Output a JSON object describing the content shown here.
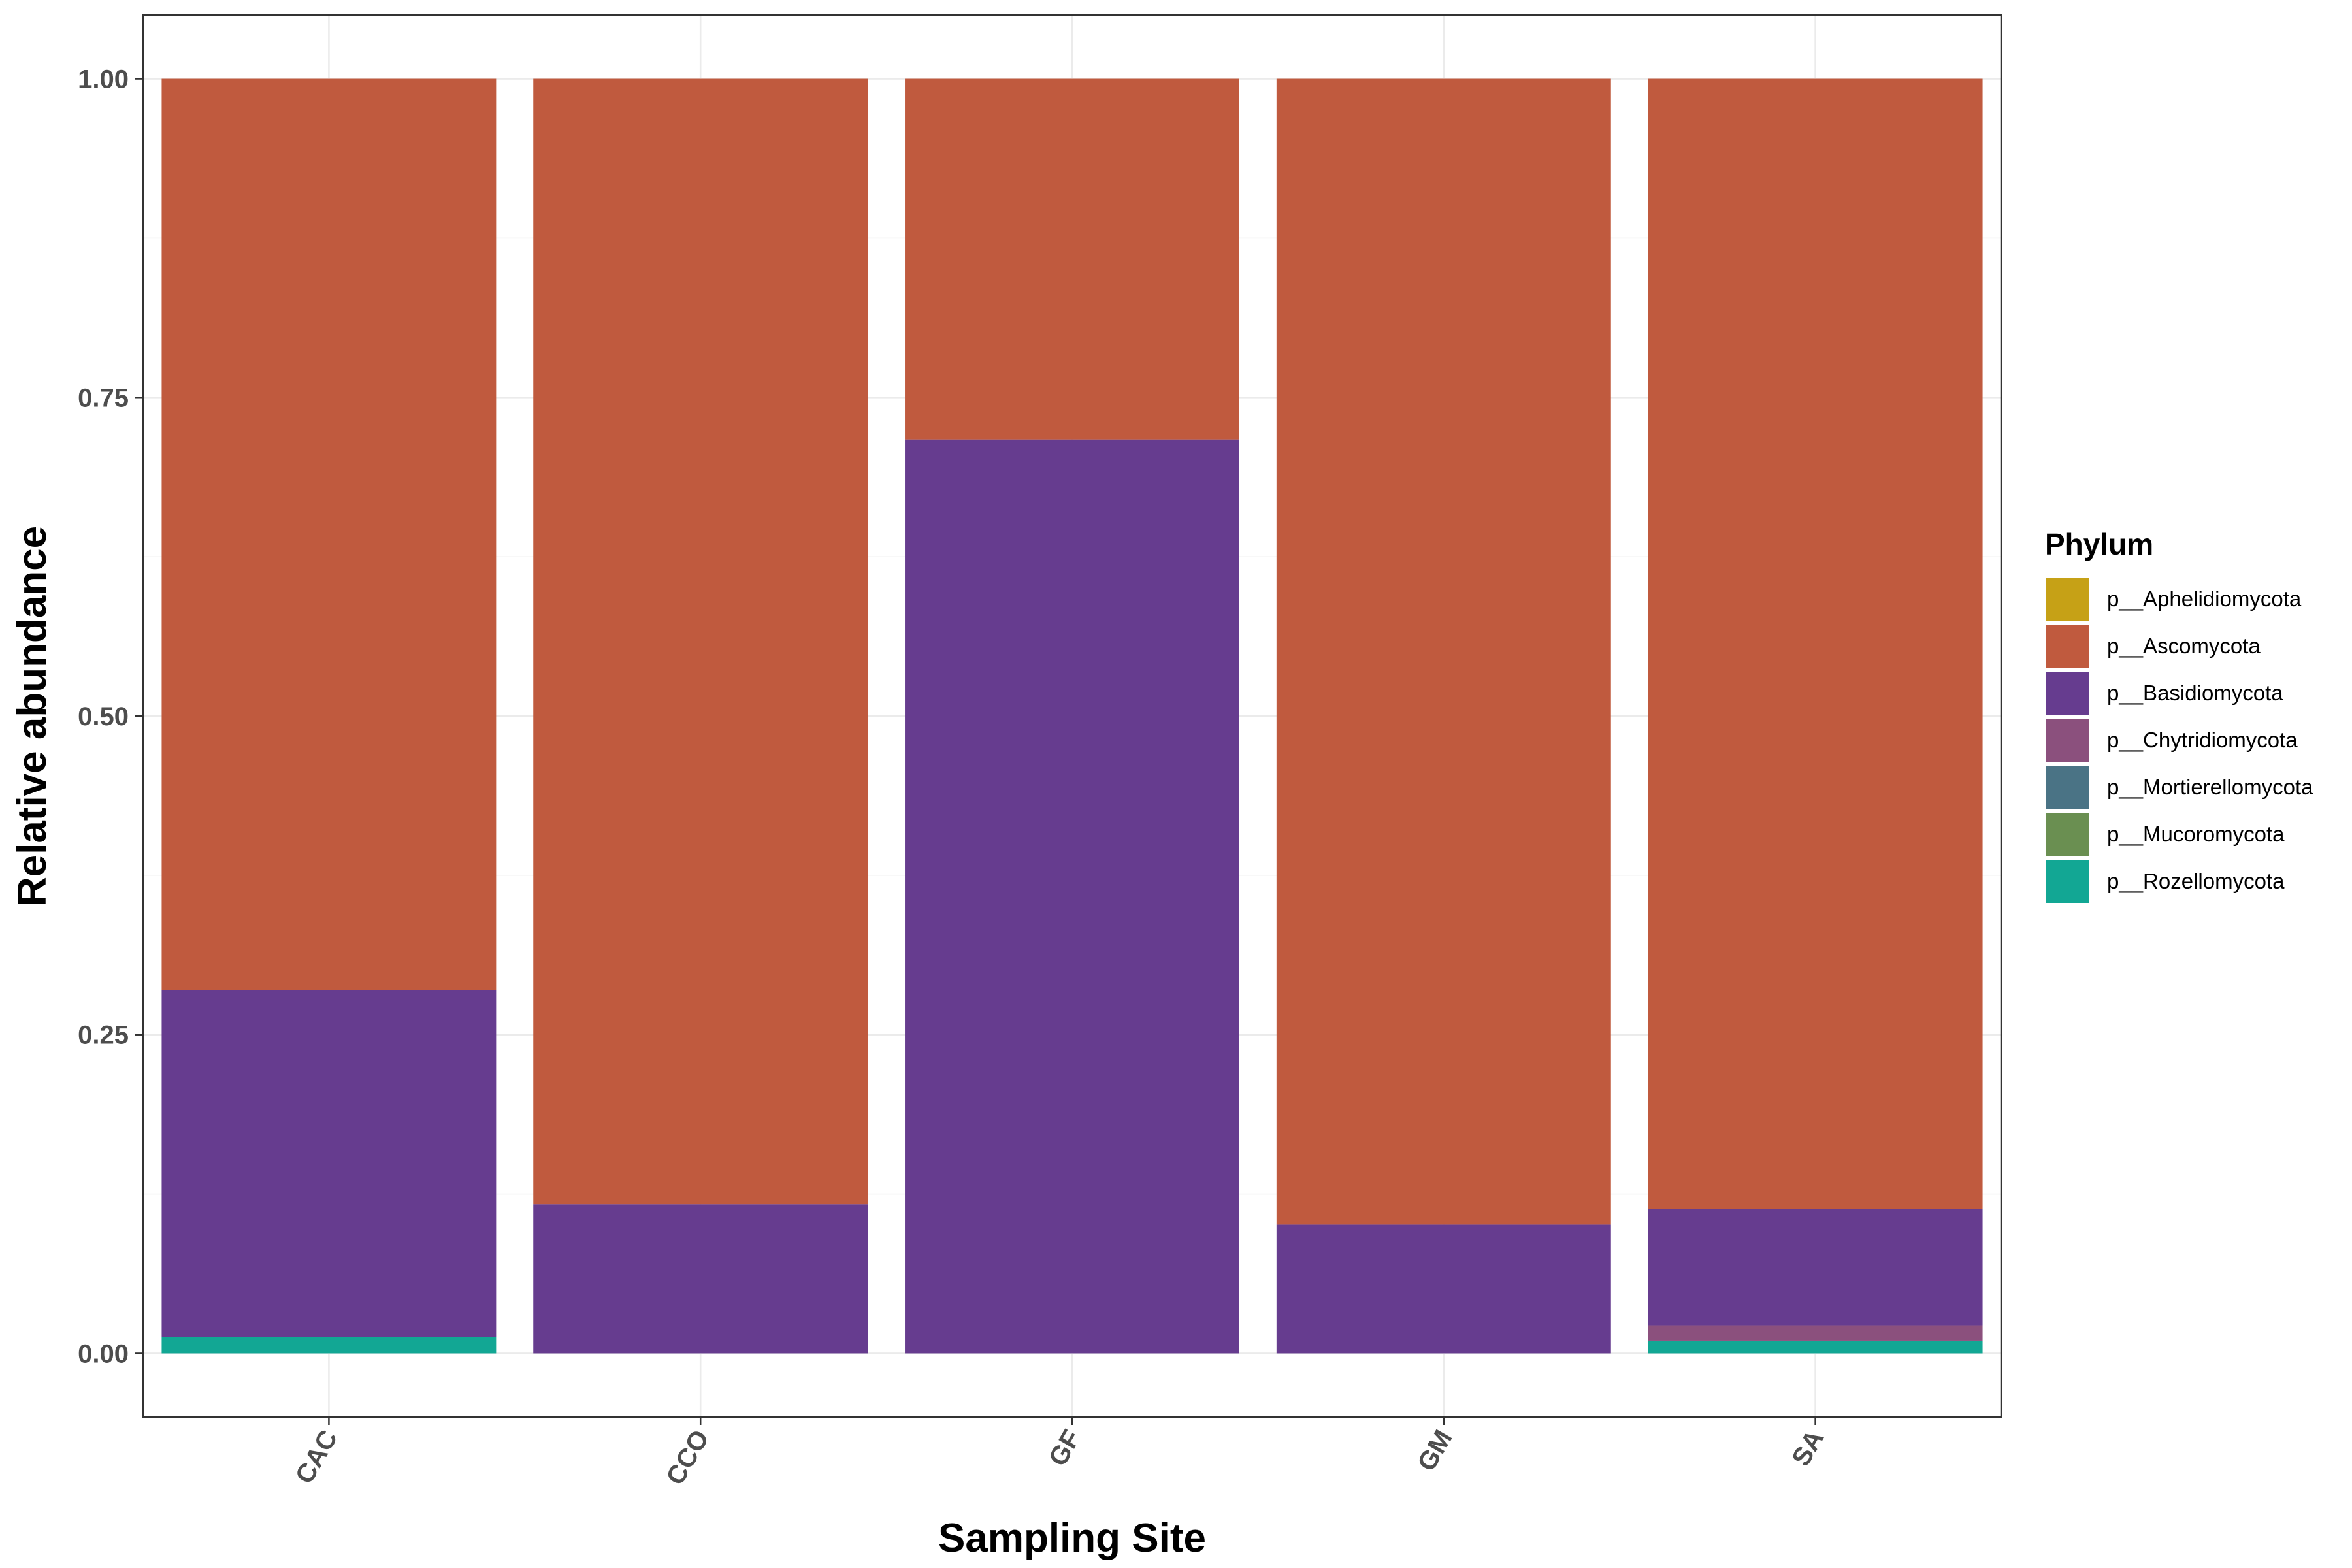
{
  "chart_data": {
    "type": "bar",
    "stacked": true,
    "xlabel": "Sampling Site",
    "ylabel": "Relative abundance",
    "ylim": [
      -0.05,
      1.05
    ],
    "y_ticks": [
      "0.00",
      "0.25",
      "0.50",
      "0.75",
      "1.00"
    ],
    "categories": [
      "CAC",
      "CCO",
      "GF",
      "GM",
      "SA"
    ],
    "grid": true,
    "legend": {
      "title": "Phylum",
      "position": "right"
    },
    "series": [
      {
        "name": "p__Rozellomycota",
        "color": "#12A794",
        "values": [
          0.013,
          0.0,
          0.0,
          0.0,
          0.01
        ]
      },
      {
        "name": "p__Mucoromycota",
        "color": "#6A8F51",
        "values": [
          0.0,
          0.0,
          0.0,
          0.0,
          0.0
        ]
      },
      {
        "name": "p__Mortierellomycota",
        "color": "#4A7385",
        "values": [
          0.0,
          0.0,
          0.0,
          0.0,
          0.0
        ]
      },
      {
        "name": "p__Chytridiomycota",
        "color": "#8B507D",
        "values": [
          0.0,
          0.0,
          0.0,
          0.0,
          0.012
        ]
      },
      {
        "name": "p__Basidiomycota",
        "color": "#663C8F",
        "values": [
          0.272,
          0.117,
          0.717,
          0.101,
          0.091
        ]
      },
      {
        "name": "p__Ascomycota",
        "color": "#C05A3E",
        "values": [
          0.715,
          0.883,
          0.283,
          0.899,
          0.887
        ]
      },
      {
        "name": "p__Aphelidiomycota",
        "color": "#C6A116",
        "values": [
          0.0,
          0.0,
          0.0,
          0.0,
          0.0
        ]
      }
    ],
    "legend_order": [
      "p__Aphelidiomycota",
      "p__Ascomycota",
      "p__Basidiomycota",
      "p__Chytridiomycota",
      "p__Mortierellomycota",
      "p__Mucoromycota",
      "p__Rozellomycota"
    ]
  }
}
